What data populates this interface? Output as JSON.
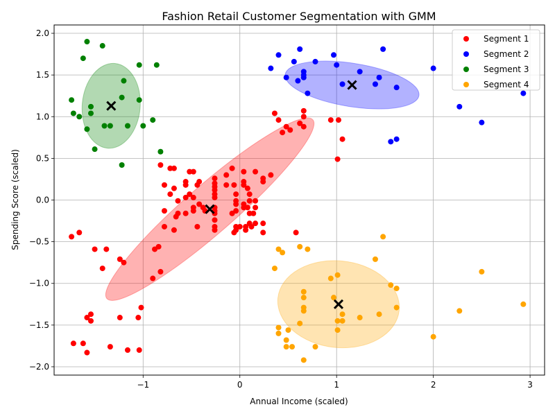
{
  "chart_data": {
    "type": "scatter",
    "title": "Fashion Retail Customer Segmentation with GMM",
    "xlabel": "Annual Income (scaled)",
    "ylabel": "Spending Score (scaled)",
    "xlim": [
      -1.92,
      3.15
    ],
    "ylim": [
      -2.1,
      2.1
    ],
    "xticks": [
      -1,
      0,
      1,
      2,
      3
    ],
    "yticks": [
      -2.0,
      -1.5,
      -1.0,
      -0.5,
      0.0,
      0.5,
      1.0,
      1.5,
      2.0
    ],
    "xtick_labels": [
      "−1",
      "0",
      "1",
      "2",
      "3"
    ],
    "ytick_labels": [
      "−2.0",
      "−1.5",
      "−1.0",
      "−0.5",
      "0.0",
      "0.5",
      "1.0",
      "1.5",
      "2.0"
    ],
    "grid": true,
    "legend": "top-right",
    "series": [
      {
        "name": "Segment 1",
        "color": "#ff0000",
        "center": [
          -0.31,
          -0.11
        ],
        "ellipse": {
          "rx_data": 1.41,
          "ry_data": 0.29,
          "angle_deg": 41
        },
        "points": [
          [
            -0.82,
            0.42
          ],
          [
            -0.78,
            0.18
          ],
          [
            -0.72,
            0.38
          ],
          [
            -0.68,
            0.38
          ],
          [
            -0.68,
            0.14
          ],
          [
            -0.72,
            0.07
          ],
          [
            -0.64,
            -0.01
          ],
          [
            -0.56,
            0.22
          ],
          [
            -0.56,
            0.18
          ],
          [
            -0.56,
            0.03
          ],
          [
            -0.52,
            0.34
          ],
          [
            -0.48,
            0.34
          ],
          [
            -0.52,
            0.07
          ],
          [
            -0.48,
            0.03
          ],
          [
            -0.48,
            -0.09
          ],
          [
            -0.48,
            -0.13
          ],
          [
            -0.44,
            0.18
          ],
          [
            -0.42,
            0.22
          ],
          [
            -0.42,
            -0.05
          ],
          [
            -0.38,
            -0.09
          ],
          [
            -0.36,
            -0.13
          ],
          [
            -0.44,
            -0.32
          ],
          [
            -0.56,
            -0.16
          ],
          [
            -0.64,
            -0.16
          ],
          [
            -0.66,
            -0.2
          ],
          [
            -0.68,
            -0.36
          ],
          [
            -0.78,
            -0.13
          ],
          [
            -0.78,
            -0.32
          ],
          [
            -0.26,
            0.26
          ],
          [
            -0.26,
            0.2
          ],
          [
            -0.26,
            0.16
          ],
          [
            -0.26,
            0.12
          ],
          [
            -0.26,
            0.07
          ],
          [
            -0.26,
            0.03
          ],
          [
            -0.26,
            -0.09
          ],
          [
            -0.26,
            -0.13
          ],
          [
            -0.26,
            -0.16
          ],
          [
            -0.26,
            -0.24
          ],
          [
            -0.26,
            -0.32
          ],
          [
            -0.26,
            -0.36
          ],
          [
            -0.14,
            0.3
          ],
          [
            -0.14,
            0.18
          ],
          [
            -0.08,
            0.38
          ],
          [
            -0.06,
            0.18
          ],
          [
            -0.08,
            -0.16
          ],
          [
            -0.04,
            0.07
          ],
          [
            -0.04,
            -0.01
          ],
          [
            -0.04,
            -0.05
          ],
          [
            -0.04,
            -0.13
          ],
          [
            -0.04,
            -0.32
          ],
          [
            -0.04,
            -0.36
          ],
          [
            -0.06,
            -0.39
          ],
          [
            0.0,
            -0.32
          ],
          [
            0.04,
            0.34
          ],
          [
            0.04,
            0.22
          ],
          [
            0.04,
            0.18
          ],
          [
            0.04,
            -0.05
          ],
          [
            0.04,
            -0.09
          ],
          [
            0.06,
            -0.32
          ],
          [
            0.06,
            -0.36
          ],
          [
            0.08,
            0.14
          ],
          [
            0.1,
            0.07
          ],
          [
            0.1,
            -0.01
          ],
          [
            0.08,
            -0.09
          ],
          [
            0.1,
            -0.16
          ],
          [
            0.1,
            -0.28
          ],
          [
            0.12,
            -0.32
          ],
          [
            0.14,
            -0.16
          ],
          [
            0.16,
            0.34
          ],
          [
            0.16,
            -0.01
          ],
          [
            0.16,
            -0.09
          ],
          [
            0.16,
            -0.28
          ],
          [
            0.24,
            0.26
          ],
          [
            0.24,
            0.22
          ],
          [
            0.24,
            -0.28
          ],
          [
            0.24,
            -0.39
          ],
          [
            0.32,
            0.3
          ],
          [
            0.36,
            1.04
          ],
          [
            0.4,
            0.96
          ],
          [
            0.44,
            0.81
          ],
          [
            0.48,
            0.88
          ],
          [
            0.52,
            0.84
          ],
          [
            0.62,
            0.92
          ],
          [
            0.66,
            1.07
          ],
          [
            0.66,
            1.0
          ],
          [
            0.66,
            0.88
          ],
          [
            0.94,
            0.96
          ],
          [
            1.02,
            0.96
          ],
          [
            1.06,
            0.73
          ],
          [
            1.01,
            0.49
          ],
          [
            0.58,
            -0.39
          ],
          [
            -0.88,
            -0.59
          ],
          [
            -0.84,
            -0.56
          ],
          [
            -0.82,
            -0.86
          ],
          [
            -0.9,
            -0.94
          ],
          [
            -1.74,
            -0.44
          ],
          [
            -1.66,
            -0.39
          ],
          [
            -1.5,
            -0.59
          ],
          [
            -1.38,
            -0.59
          ],
          [
            -1.42,
            -0.82
          ],
          [
            -1.24,
            -0.71
          ],
          [
            -1.2,
            -0.75
          ],
          [
            -1.02,
            -1.29
          ],
          [
            -1.05,
            -1.41
          ],
          [
            -1.24,
            -1.41
          ],
          [
            -1.54,
            -1.37
          ],
          [
            -1.54,
            -1.45
          ],
          [
            -1.58,
            -1.41
          ],
          [
            -1.62,
            -1.72
          ],
          [
            -1.72,
            -1.72
          ],
          [
            -1.58,
            -1.83
          ],
          [
            -1.34,
            -1.76
          ],
          [
            -1.16,
            -1.8
          ],
          [
            -1.04,
            -1.8
          ]
        ]
      },
      {
        "name": "Segment 2",
        "color": "#0000ff",
        "center": [
          1.16,
          1.38
        ],
        "ellipse": {
          "rx_data": 0.7,
          "ry_data": 0.26,
          "angle_deg": -9
        },
        "points": [
          [
            0.32,
            1.58
          ],
          [
            0.4,
            1.74
          ],
          [
            0.48,
            1.47
          ],
          [
            0.56,
            1.66
          ],
          [
            0.6,
            1.43
          ],
          [
            0.62,
            1.81
          ],
          [
            0.66,
            1.54
          ],
          [
            0.66,
            1.5
          ],
          [
            0.66,
            1.47
          ],
          [
            0.7,
            1.28
          ],
          [
            0.78,
            1.66
          ],
          [
            0.97,
            1.74
          ],
          [
            1.0,
            1.62
          ],
          [
            1.06,
            1.39
          ],
          [
            1.24,
            1.54
          ],
          [
            1.4,
            1.39
          ],
          [
            1.44,
            1.47
          ],
          [
            1.48,
            1.81
          ],
          [
            1.56,
            0.7
          ],
          [
            1.62,
            0.73
          ],
          [
            1.62,
            1.35
          ],
          [
            2.0,
            1.58
          ],
          [
            2.27,
            1.12
          ],
          [
            2.5,
            0.93
          ],
          [
            2.93,
            1.28
          ]
        ]
      },
      {
        "name": "Segment 3",
        "color": "#008000",
        "center": [
          -1.33,
          1.13
        ],
        "ellipse": {
          "rx_data": 0.3,
          "ry_data": 0.51,
          "angle_deg": -5
        },
        "points": [
          [
            -1.58,
            1.9
          ],
          [
            -1.42,
            1.85
          ],
          [
            -1.62,
            1.7
          ],
          [
            -1.2,
            1.43
          ],
          [
            -1.04,
            1.62
          ],
          [
            -0.86,
            1.62
          ],
          [
            -1.74,
            1.2
          ],
          [
            -1.72,
            1.04
          ],
          [
            -1.66,
            1.0
          ],
          [
            -1.54,
            1.12
          ],
          [
            -1.54,
            1.04
          ],
          [
            -1.22,
            1.23
          ],
          [
            -1.04,
            1.2
          ],
          [
            -1.4,
            0.89
          ],
          [
            -1.34,
            0.89
          ],
          [
            -1.16,
            0.89
          ],
          [
            -1.0,
            0.89
          ],
          [
            -0.9,
            0.96
          ],
          [
            -1.58,
            0.85
          ],
          [
            -1.5,
            0.61
          ],
          [
            -1.22,
            0.42
          ],
          [
            -0.82,
            0.58
          ]
        ]
      },
      {
        "name": "Segment 4",
        "color": "#ffa500",
        "center": [
          1.02,
          -1.25
        ],
        "ellipse": {
          "rx_data": 0.63,
          "ry_data": 0.52,
          "angle_deg": -6
        },
        "points": [
          [
            0.4,
            -0.59
          ],
          [
            0.44,
            -0.63
          ],
          [
            0.62,
            -0.56
          ],
          [
            0.7,
            -0.59
          ],
          [
            0.36,
            -0.82
          ],
          [
            0.4,
            -1.53
          ],
          [
            0.4,
            -1.6
          ],
          [
            0.48,
            -1.68
          ],
          [
            0.5,
            -1.56
          ],
          [
            0.54,
            -1.76
          ],
          [
            0.48,
            -1.76
          ],
          [
            0.62,
            -1.48
          ],
          [
            0.66,
            -1.1
          ],
          [
            0.66,
            -1.17
          ],
          [
            0.66,
            -1.29
          ],
          [
            0.66,
            -1.33
          ],
          [
            0.66,
            -1.92
          ],
          [
            0.78,
            -1.76
          ],
          [
            0.94,
            -0.94
          ],
          [
            0.97,
            -1.17
          ],
          [
            1.01,
            -0.9
          ],
          [
            1.01,
            -1.45
          ],
          [
            1.01,
            -1.56
          ],
          [
            1.06,
            -1.37
          ],
          [
            1.06,
            -1.45
          ],
          [
            1.24,
            -1.41
          ],
          [
            1.4,
            -0.71
          ],
          [
            1.44,
            -1.37
          ],
          [
            1.48,
            -0.44
          ],
          [
            1.56,
            -1.02
          ],
          [
            1.62,
            -1.06
          ],
          [
            1.62,
            -1.29
          ],
          [
            2.0,
            -1.64
          ],
          [
            2.27,
            -1.33
          ],
          [
            2.5,
            -0.86
          ],
          [
            2.93,
            -1.25
          ]
        ]
      }
    ]
  }
}
